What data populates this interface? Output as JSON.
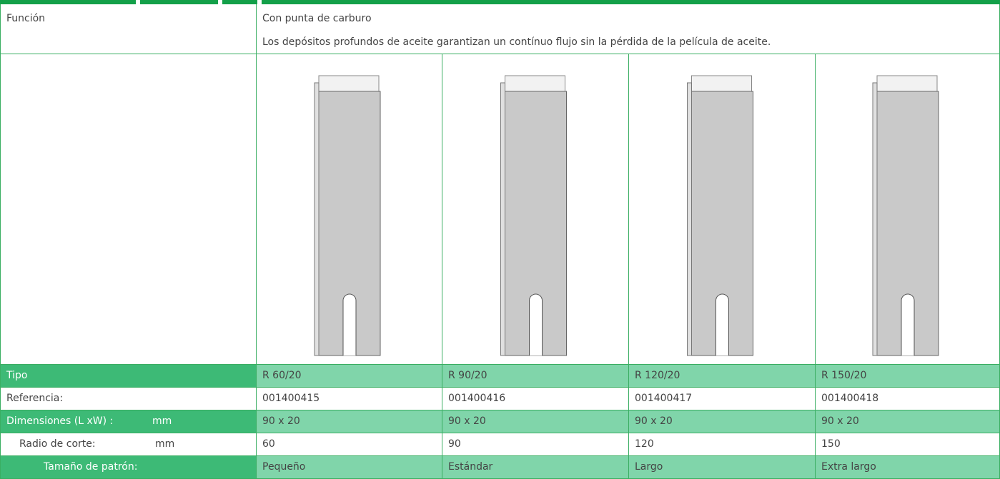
{
  "function": {
    "label": "Función",
    "lines": [
      "Con punta de carburo",
      "Los depósitos profundos de aceite garantizan un contínuo flujo sin la pérdida de la película de aceite."
    ]
  },
  "specs": [
    {
      "label": "Tipo",
      "values": [
        "R 60/20",
        "R 90/20",
        "R 120/20",
        "R 150/20"
      ]
    },
    {
      "label": "Referencia:",
      "values": [
        "001400415",
        "001400416",
        "001400417",
        "001400418"
      ]
    },
    {
      "label": "Dimensiones (L xW) :",
      "unit": "mm",
      "values": [
        "90 x 20",
        "90 x 20",
        "90 x 20",
        "90 x 20"
      ]
    },
    {
      "label": "Radio de corte:",
      "unit": "mm",
      "values": [
        "60",
        "90",
        "120",
        "150"
      ]
    },
    {
      "label": "Tamaño de patrón:",
      "values": [
        "Pequeño",
        "Estándar",
        "Largo",
        "Extra largo"
      ]
    }
  ]
}
